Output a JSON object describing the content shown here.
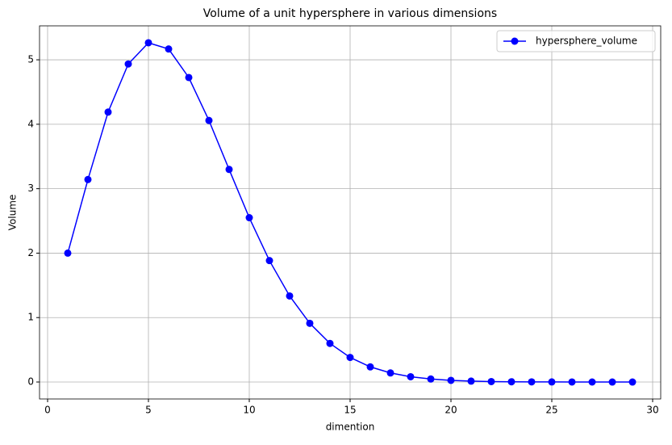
{
  "chart_data": {
    "type": "line",
    "title": "Volume of a unit hypersphere in various dimensions",
    "x_label": "dimention",
    "y_label": "Volume",
    "x": [
      1,
      2,
      3,
      4,
      5,
      6,
      7,
      8,
      9,
      10,
      11,
      12,
      13,
      14,
      15,
      16,
      17,
      18,
      19,
      20,
      21,
      22,
      23,
      24,
      25,
      26,
      27,
      28,
      29
    ],
    "series": [
      {
        "name": "hypersphere_volume",
        "color": "#0000ff",
        "values": [
          2,
          3.142,
          4.189,
          4.935,
          5.264,
          5.168,
          4.725,
          4.059,
          3.299,
          2.55,
          1.884,
          1.335,
          0.911,
          0.599,
          0.381,
          0.235,
          0.141,
          0.082,
          0.047,
          0.026,
          0.014,
          0.007,
          0.004,
          0.002,
          0.001,
          0.0005,
          0.0002,
          0.0001,
          5e-05
        ]
      }
    ],
    "xlim": [
      -0.4,
      30.4
    ],
    "xticks": [
      0,
      5,
      10,
      15,
      20,
      25,
      30
    ],
    "ylim": [
      -0.263,
      5.527
    ],
    "yticks": [
      0,
      1,
      2,
      3,
      4,
      5
    ],
    "grid": true,
    "legend": "upper right"
  }
}
